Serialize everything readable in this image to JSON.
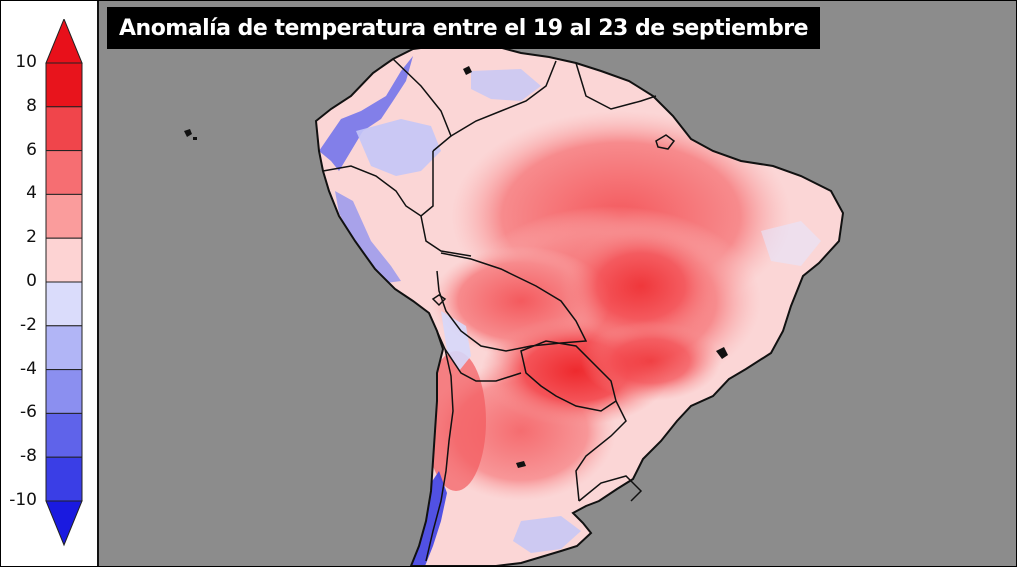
{
  "title": "Anomalía de temperatura entre el 19 al 23 de septiembre",
  "legend": {
    "tick_labels": [
      "10",
      "8",
      "6",
      "4",
      "2",
      "0",
      "-2",
      "-4",
      "-6",
      "-8",
      "-10"
    ],
    "bins": [
      {
        "range": "8 a 10",
        "color": "#e8141c"
      },
      {
        "range": "6 a 8",
        "color": "#f0454b"
      },
      {
        "range": "4 a 6",
        "color": "#f66e72"
      },
      {
        "range": "2 a 4",
        "color": "#fa9c9c"
      },
      {
        "range": "0 a 2",
        "color": "#fdd3d3"
      },
      {
        "range": "-2 a 0",
        "color": "#dadcfb"
      },
      {
        "range": "-4 a -2",
        "color": "#b1b5f6"
      },
      {
        "range": "-6 a -4",
        "color": "#8b8ff0"
      },
      {
        "range": "-8 a -6",
        "color": "#5f63ea"
      },
      {
        "range": "-10 a -8",
        "color": "#3a3ee6"
      }
    ],
    "over_color": "#e8101a",
    "under_color": "#1a1ae0"
  },
  "map": {
    "ocean_color": "#8c8c8c",
    "border_color": "#111111"
  }
}
